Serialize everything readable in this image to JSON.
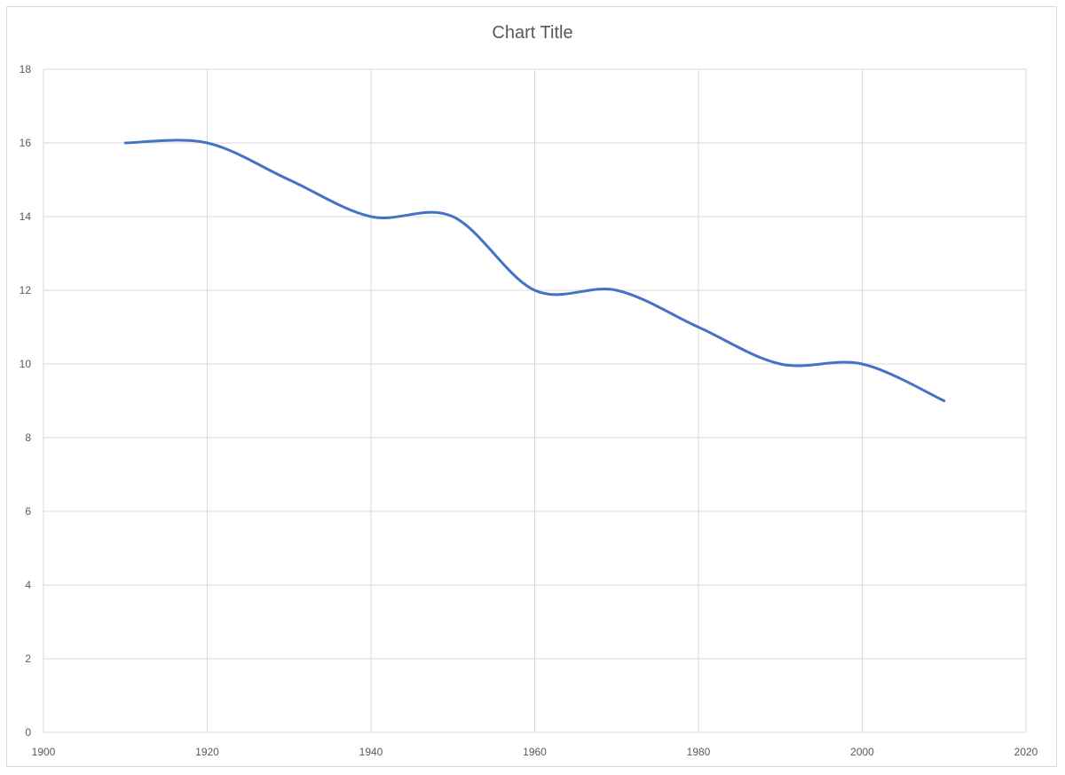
{
  "chart_data": {
    "type": "line",
    "title": "Chart Title",
    "xlabel": "",
    "ylabel": "",
    "xlim": [
      1900,
      2020
    ],
    "ylim": [
      0,
      18
    ],
    "x_ticks": [
      1900,
      1920,
      1940,
      1960,
      1980,
      2000,
      2020
    ],
    "y_ticks": [
      0,
      2,
      4,
      6,
      8,
      10,
      12,
      14,
      16,
      18
    ],
    "grid": true,
    "legend": "none",
    "smooth": true,
    "series": [
      {
        "color": "#4472C4",
        "x": [
          1910,
          1920,
          1930,
          1940,
          1950,
          1960,
          1970,
          1980,
          1990,
          2000,
          2010
        ],
        "values": [
          16,
          16,
          15,
          14,
          14,
          12,
          12,
          11,
          10,
          10,
          9
        ]
      }
    ]
  }
}
